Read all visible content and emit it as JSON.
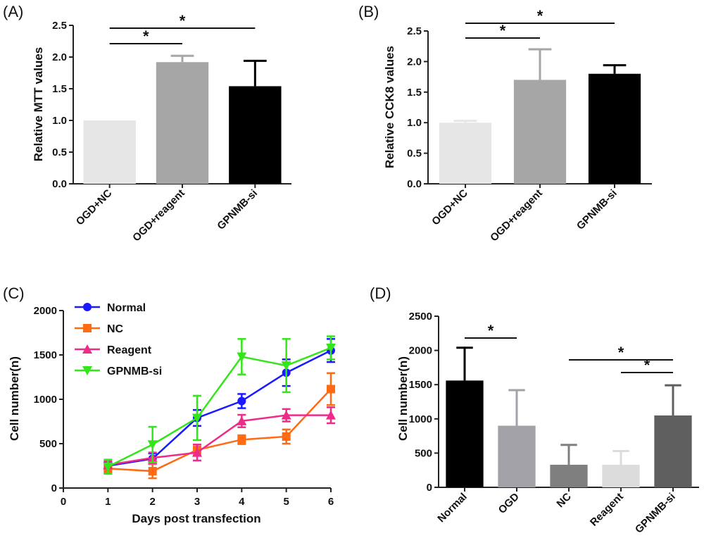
{
  "chart_data": [
    {
      "panel": "(A)",
      "type": "bar",
      "title": "",
      "xlabel": "",
      "ylabel": "Relative MTT values",
      "ylim": [
        0,
        2.5
      ],
      "yticks": [
        "0.0",
        "0.5",
        "1.0",
        "1.5",
        "2.0",
        "2.5"
      ],
      "categories": [
        "OGD+NC",
        "OGD+reagent",
        "GPNMB-si"
      ],
      "values": [
        1.0,
        1.92,
        1.54
      ],
      "errors": [
        0.0,
        0.1,
        0.4
      ],
      "bar_colors": [
        "#e6e6e6",
        "#a6a6a6",
        "#000000"
      ],
      "significance": [
        {
          "from": 0,
          "to": 1,
          "label": "*"
        },
        {
          "from": 0,
          "to": 2,
          "label": "*"
        }
      ]
    },
    {
      "panel": "(B)",
      "type": "bar",
      "title": "",
      "xlabel": "",
      "ylabel": "Relative CCK8 values",
      "ylim": [
        0,
        2.5
      ],
      "yticks": [
        "0.0",
        "0.5",
        "1.0",
        "1.5",
        "2.0",
        "2.5"
      ],
      "categories": [
        "OGD+NC",
        "OGD+reagent",
        "GPNMB-si"
      ],
      "values": [
        1.0,
        1.7,
        1.8
      ],
      "errors": [
        0.03,
        0.5,
        0.14
      ],
      "bar_colors": [
        "#e6e6e6",
        "#a6a6a6",
        "#000000"
      ],
      "significance": [
        {
          "from": 0,
          "to": 1,
          "label": "*"
        },
        {
          "from": 0,
          "to": 2,
          "label": "*"
        }
      ]
    },
    {
      "panel": "(C)",
      "type": "line",
      "title": "",
      "xlabel": "Days post transfection",
      "ylabel": "Cell number(n)",
      "xlim": [
        0,
        6
      ],
      "ylim": [
        0,
        2000
      ],
      "xticks": [
        "0",
        "1",
        "2",
        "3",
        "4",
        "5",
        "6"
      ],
      "yticks": [
        "0",
        "500",
        "1000",
        "1500",
        "2000"
      ],
      "x": [
        1,
        2,
        3,
        4,
        5,
        6
      ],
      "legend_position": "top-left",
      "series": [
        {
          "name": "Normal",
          "marker": "circle",
          "color": "#1a1aff",
          "values": [
            250,
            330,
            790,
            980,
            1300,
            1550
          ],
          "errors": [
            40,
            60,
            90,
            80,
            150,
            130
          ]
        },
        {
          "name": "NC",
          "marker": "square",
          "color": "#ff6a13",
          "values": [
            220,
            190,
            430,
            545,
            580,
            1115
          ],
          "errors": [
            50,
            80,
            60,
            50,
            80,
            180
          ]
        },
        {
          "name": "Reagent",
          "marker": "triangle-up",
          "color": "#ef2b8a",
          "values": [
            260,
            340,
            400,
            755,
            820,
            820
          ],
          "errors": [
            40,
            60,
            90,
            70,
            70,
            90
          ]
        },
        {
          "name": "GPNMB-si",
          "marker": "triangle-down",
          "color": "#33e61a",
          "values": [
            240,
            490,
            790,
            1480,
            1380,
            1580
          ],
          "errors": [
            80,
            200,
            250,
            200,
            300,
            130
          ]
        }
      ]
    },
    {
      "panel": "(D)",
      "type": "bar",
      "title": "",
      "xlabel": "",
      "ylabel": "Cell number(n)",
      "ylim": [
        0,
        2500
      ],
      "yticks": [
        "0",
        "500",
        "1000",
        "1500",
        "2000",
        "2500"
      ],
      "categories": [
        "Normal",
        "OGD",
        "NC",
        "Reagent",
        "GPNMB-si"
      ],
      "values": [
        1560,
        900,
        330,
        330,
        1050
      ],
      "errors": [
        480,
        520,
        290,
        200,
        440
      ],
      "bar_colors": [
        "#000000",
        "#a2a2a8",
        "#7f7f7f",
        "#dcdcdc",
        "#5f5f5f"
      ],
      "significance": [
        {
          "from": 0,
          "to": 1,
          "label": "*"
        },
        {
          "from": 2,
          "to": 4,
          "label": "*"
        },
        {
          "from": 3,
          "to": 4,
          "label": "*"
        }
      ]
    }
  ]
}
